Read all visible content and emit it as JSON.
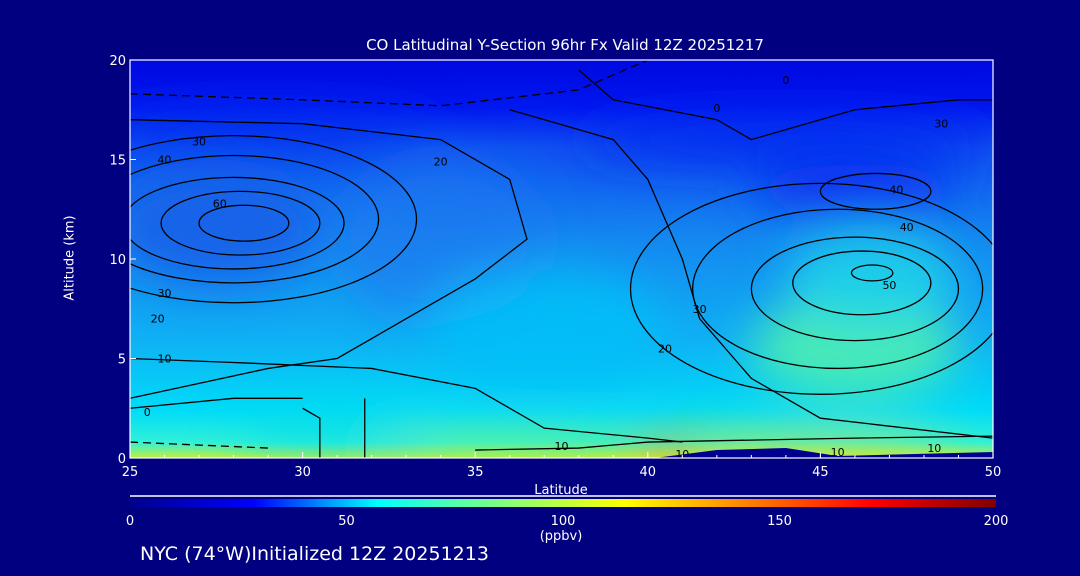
{
  "chart_data": {
    "type": "heatmap",
    "title": "CO Latitudinal Y-Section 96hr  Fx Valid 12Z 20251217",
    "xlabel": "Latitude",
    "ylabel": "Altitude (km)",
    "xlim": [
      25,
      50
    ],
    "ylim": [
      0,
      20
    ],
    "xticks": [
      "25",
      "30",
      "35",
      "40",
      "45",
      "50"
    ],
    "yticks": [
      "0",
      "5",
      "10",
      "15",
      "20"
    ],
    "colorbar": {
      "range": [
        0,
        200
      ],
      "ticks": [
        "0",
        "50",
        "100",
        "150",
        "200"
      ],
      "units": "(ppbv)",
      "colors": [
        "#00008f",
        "#0000ff",
        "#00ffff",
        "#80ff80",
        "#ffff00",
        "#ff8000",
        "#ff0000",
        "#800000"
      ]
    },
    "contour_levels": [
      0,
      10,
      20,
      30,
      40,
      50,
      60
    ],
    "contour_labels": [
      "30",
      "40",
      "20",
      "60",
      "30",
      "20",
      "10",
      "0",
      "0",
      "0",
      "40",
      "40",
      "30",
      "50",
      "30",
      "20",
      "10",
      "10",
      "10",
      "10"
    ]
  },
  "footer": "NYC (74°W)Initialized 12Z 20251213"
}
